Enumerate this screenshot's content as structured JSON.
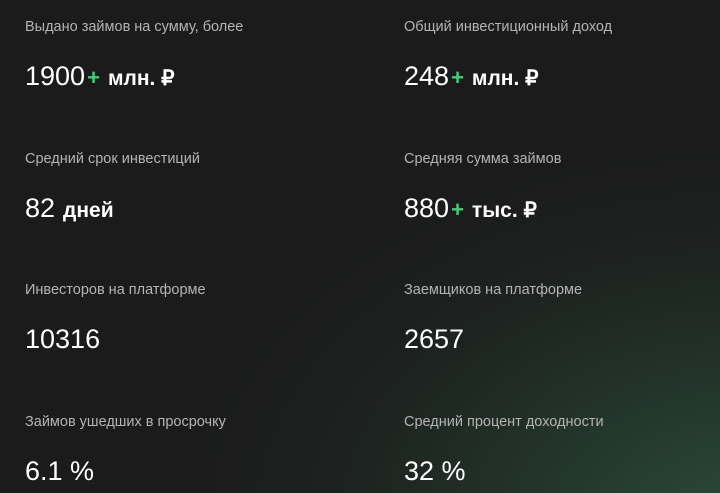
{
  "stats": [
    {
      "label": "Выдано займов на сумму, более",
      "value": "1900",
      "plus": "+",
      "unit": "млн. ₽"
    },
    {
      "label": "Общий инвестиционный доход",
      "value": "248",
      "plus": "+",
      "unit": "млн. ₽"
    },
    {
      "label": "Средний срок инвестиций",
      "value": "82",
      "plus": "",
      "unit": "дней"
    },
    {
      "label": "Средняя сумма займов",
      "value": "880",
      "plus": "+",
      "unit": "тыс. ₽"
    },
    {
      "label": "Инвесторов на платформе",
      "value": "10316",
      "plus": "",
      "unit": ""
    },
    {
      "label": "Заемщиков на платформе",
      "value": "2657",
      "plus": "",
      "unit": ""
    },
    {
      "label": "Займов ушедших в просрочку",
      "value": "6.1 %",
      "plus": "",
      "unit": ""
    },
    {
      "label": "Средний процент доходности",
      "value": "32 %",
      "plus": "",
      "unit": ""
    }
  ],
  "colors": {
    "accent": "#3ecf7a",
    "background": "#1b1b1b",
    "glow": "#2a4a36"
  }
}
